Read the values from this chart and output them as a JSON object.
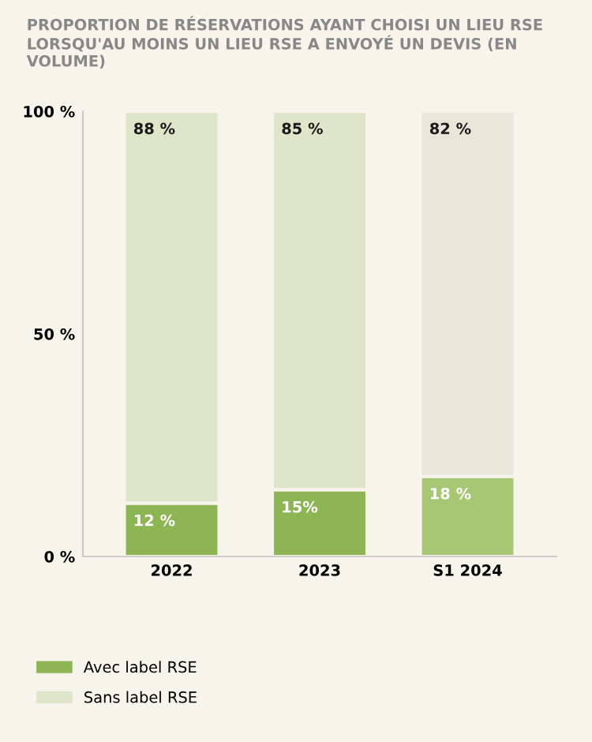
{
  "chart_data": {
    "type": "bar",
    "stacked": true,
    "title": "PROPORTION DE RÉSERVATIONS AYANT CHOISI UN LIEU RSE LORSQU'AU MOINS UN LIEU RSE A ENVOYÉ UN DEVIS (EN VOLUME)",
    "categories": [
      "2022",
      "2023",
      "S1 2024"
    ],
    "series": [
      {
        "name": "Avec label RSE",
        "color": "#8db553",
        "colors": [
          "#8db553",
          "#8db553",
          "#a8c774"
        ],
        "values": [
          12,
          15,
          18
        ],
        "value_labels": [
          "12 %",
          "15%",
          "18 %"
        ]
      },
      {
        "name": "Sans label RSE",
        "color": "#dfe5c8",
        "colors": [
          "#dfe5c8",
          "#dfe5c8",
          "#e7e6d8"
        ],
        "values": [
          88,
          85,
          82
        ],
        "value_labels": [
          "88 %",
          "85 %",
          "82 %"
        ]
      }
    ],
    "ylim": [
      0,
      100
    ],
    "yticks": [
      {
        "value": 0,
        "label": "0 %"
      },
      {
        "value": 50,
        "label": "50 %"
      },
      {
        "value": 100,
        "label": "100 %"
      }
    ],
    "grid": false,
    "legend": "bottom left"
  }
}
